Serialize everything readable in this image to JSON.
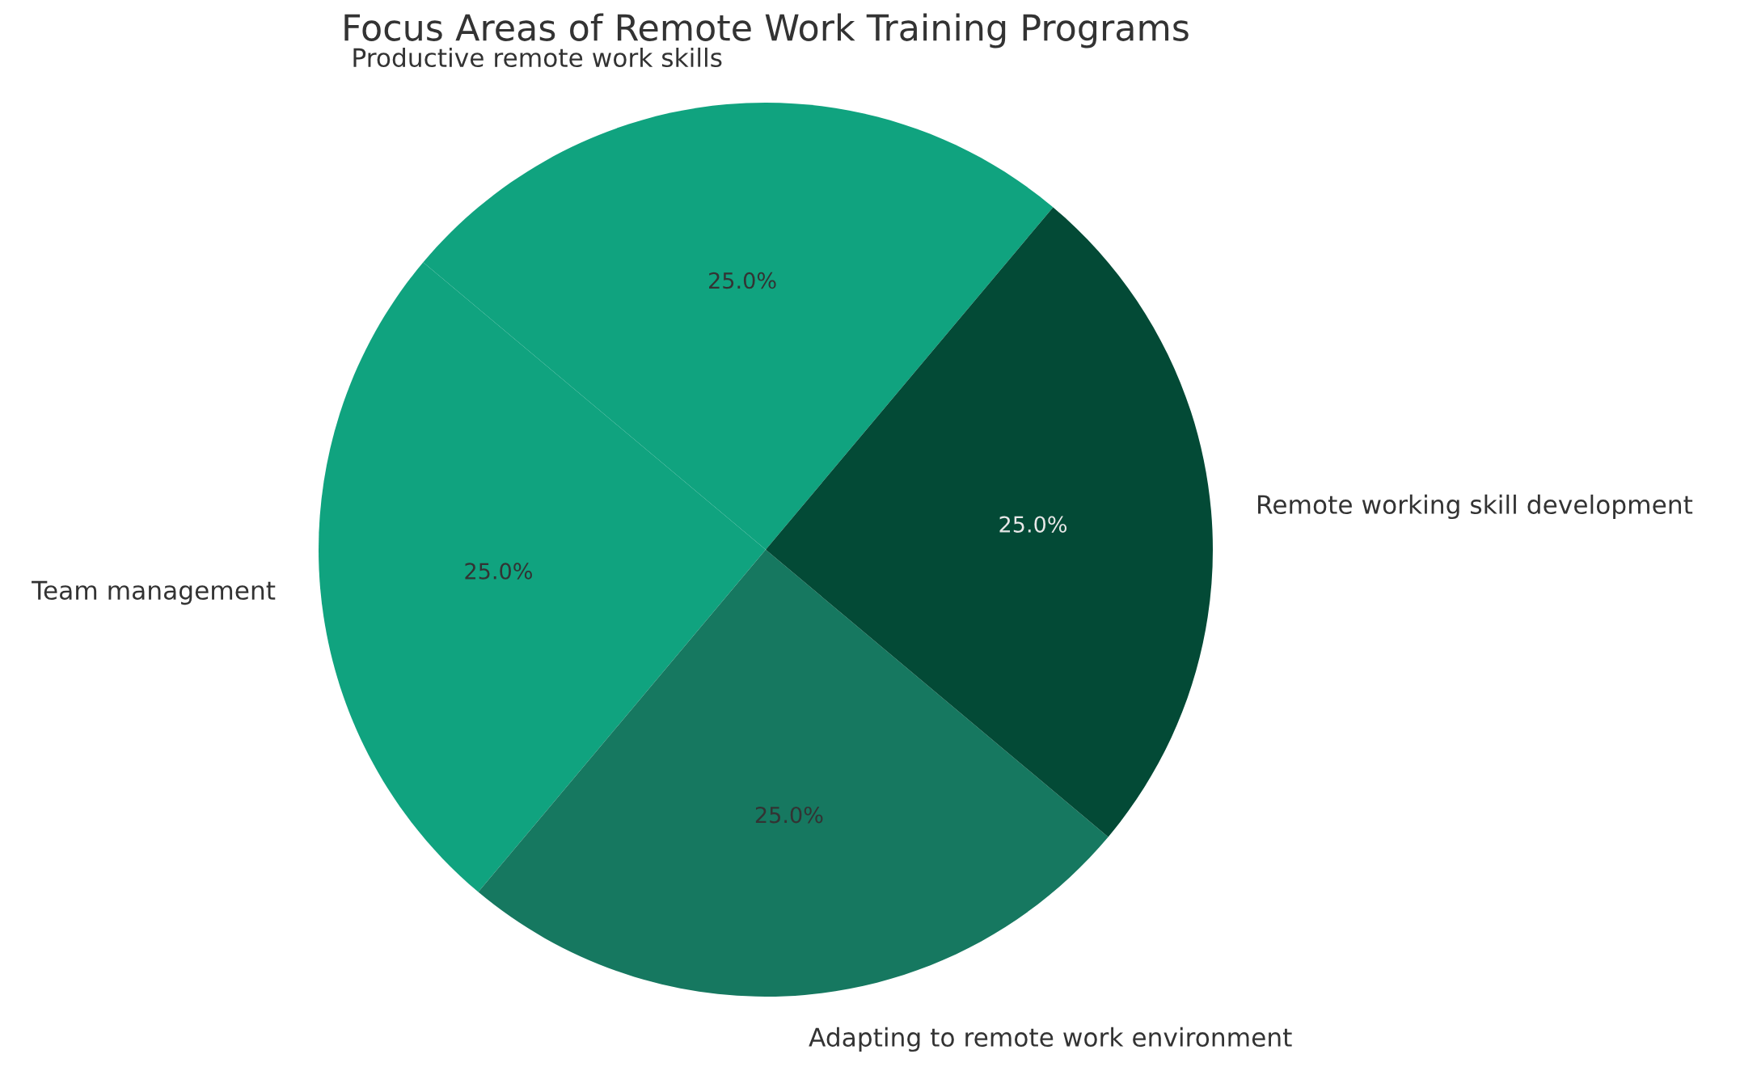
{
  "chart_data": {
    "type": "pie",
    "title": "Focus Areas of Remote Work Training Programs",
    "categories": [
      "Productive remote work skills",
      "Team management",
      "Adapting to remote work environment",
      "Remote working skill development"
    ],
    "values": [
      25,
      25,
      25,
      25
    ],
    "colors": [
      "#10a37f",
      "#10a37f",
      "#167860",
      "#034a36"
    ],
    "value_labels": [
      "25.0%",
      "25.0%",
      "25.0%",
      "25.0%"
    ],
    "legend": false
  }
}
